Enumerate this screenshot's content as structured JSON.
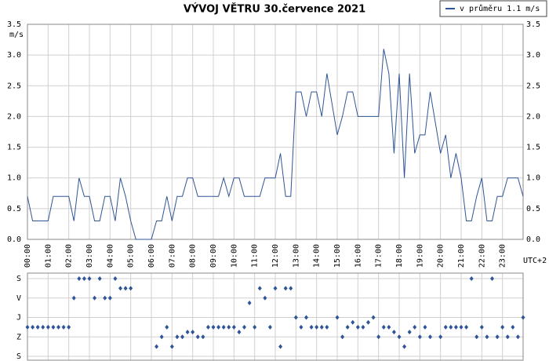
{
  "chart_data": [
    {
      "type": "line",
      "title": "VÝVOJ VĚTRU  30.července 2021",
      "y_label": "m/s",
      "x_label": "UTC+2",
      "xlim": [
        0,
        24
      ],
      "ylim": [
        0,
        3.5
      ],
      "yticks": [
        {
          "value": 0,
          "label": "0.0"
        },
        {
          "value": 0.5,
          "label": "0.5"
        },
        {
          "value": 1,
          "label": "1.0"
        },
        {
          "value": 1.5,
          "label": "1.5"
        },
        {
          "value": 2,
          "label": "2.0"
        },
        {
          "value": 2.5,
          "label": "2.5"
        },
        {
          "value": 3,
          "label": "3.0"
        },
        {
          "value": 3.5,
          "label": "3.5"
        }
      ],
      "xticks": [
        {
          "value": 0,
          "label": "00:00"
        },
        {
          "value": 1,
          "label": "01:00"
        },
        {
          "value": 2,
          "label": "02:00"
        },
        {
          "value": 3,
          "label": "03:00"
        },
        {
          "value": 4,
          "label": "04:00"
        },
        {
          "value": 5,
          "label": "05:00"
        },
        {
          "value": 6,
          "label": "06:00"
        },
        {
          "value": 7,
          "label": "07:00"
        },
        {
          "value": 8,
          "label": "08:00"
        },
        {
          "value": 9,
          "label": "09:00"
        },
        {
          "value": 10,
          "label": "10:00"
        },
        {
          "value": 11,
          "label": "11:00"
        },
        {
          "value": 12,
          "label": "12:00"
        },
        {
          "value": 13,
          "label": "13:00"
        },
        {
          "value": 14,
          "label": "14:00"
        },
        {
          "value": 15,
          "label": "15:00"
        },
        {
          "value": 16,
          "label": "16:00"
        },
        {
          "value": 17,
          "label": "17:00"
        },
        {
          "value": 18,
          "label": "18:00"
        },
        {
          "value": 19,
          "label": "19:00"
        },
        {
          "value": 20,
          "label": "20:00"
        },
        {
          "value": 21,
          "label": "21:00"
        },
        {
          "value": 22,
          "label": "22:00"
        },
        {
          "value": 23,
          "label": "23:00"
        }
      ],
      "grid": true,
      "legend": "top-right",
      "x": [
        0,
        0.25,
        0.5,
        0.75,
        1,
        1.25,
        1.5,
        1.75,
        2,
        2.25,
        2.5,
        2.75,
        3,
        3.25,
        3.5,
        3.75,
        4,
        4.25,
        4.5,
        4.75,
        5,
        5.25,
        5.5,
        5.75,
        6,
        6.25,
        6.5,
        6.75,
        7,
        7.25,
        7.5,
        7.75,
        8,
        8.25,
        8.5,
        8.75,
        9,
        9.25,
        9.5,
        9.75,
        10,
        10.25,
        10.5,
        10.75,
        11,
        11.25,
        11.5,
        11.75,
        12,
        12.25,
        12.5,
        12.75,
        13,
        13.25,
        13.5,
        13.75,
        14,
        14.25,
        14.5,
        14.75,
        15,
        15.25,
        15.5,
        15.75,
        16,
        16.25,
        16.5,
        16.75,
        17,
        17.25,
        17.5,
        17.75,
        18,
        18.25,
        18.5,
        18.75,
        19,
        19.25,
        19.5,
        19.75,
        20,
        20.25,
        20.5,
        20.75,
        21,
        21.25,
        21.5,
        21.75,
        22,
        22.25,
        22.5,
        22.75,
        23,
        23.25,
        23.5,
        23.75,
        24
      ],
      "series": [
        {
          "name": "v průměru 1.1 m/s",
          "color": "#2f5597",
          "values": [
            0.7,
            0.3,
            0.3,
            0.3,
            0.3,
            0.7,
            0.7,
            0.7,
            0.7,
            0.3,
            1.0,
            0.7,
            0.7,
            0.3,
            0.3,
            0.7,
            0.7,
            0.3,
            1.0,
            0.7,
            0.3,
            0,
            0,
            0,
            0,
            0.3,
            0.3,
            0.7,
            0.3,
            0.7,
            0.7,
            1.0,
            1.0,
            0.7,
            0.7,
            0.7,
            0.7,
            0.7,
            1.0,
            0.7,
            1.0,
            1.0,
            0.7,
            0.7,
            0.7,
            0.7,
            1.0,
            1.0,
            1.0,
            1.4,
            0.7,
            0.7,
            2.4,
            2.4,
            2.0,
            2.4,
            2.4,
            2.0,
            2.7,
            2.2,
            1.7,
            2.0,
            2.4,
            2.4,
            2.0,
            2.0,
            2.0,
            2.0,
            2.0,
            3.1,
            2.7,
            1.4,
            2.7,
            1.0,
            2.7,
            1.4,
            1.7,
            1.7,
            2.4,
            1.9,
            1.4,
            1.7,
            1.0,
            1.4,
            1.0,
            0.3,
            0.3,
            0.7,
            1.0,
            0.3,
            0.3,
            0.7,
            0.7,
            1.0,
            1.0,
            1.0,
            0.7
          ]
        }
      ]
    },
    {
      "type": "scatter",
      "xlim": [
        0,
        24
      ],
      "ylim": [
        360,
        0
      ],
      "yticks": [
        {
          "value": 0,
          "label": "S"
        },
        {
          "value": 90,
          "label": "V"
        },
        {
          "value": 180,
          "label": "J"
        },
        {
          "value": 270,
          "label": "Z"
        },
        {
          "value": 360,
          "label": "S"
        }
      ],
      "xticks": [
        0,
        1,
        2,
        3,
        4,
        5,
        6,
        7,
        8,
        9,
        10,
        11,
        12,
        13,
        14,
        15,
        16,
        17,
        18,
        19,
        20,
        21,
        22,
        23
      ],
      "grid": true,
      "x": [
        0,
        0.25,
        0.5,
        0.75,
        1,
        1.25,
        1.5,
        1.75,
        2,
        2.25,
        2.5,
        2.75,
        3,
        3.25,
        3.5,
        3.75,
        4,
        4.25,
        4.5,
        4.75,
        5,
        5.25,
        5.5,
        5.75,
        6,
        6.25,
        6.5,
        6.75,
        7,
        7.25,
        7.5,
        7.75,
        8,
        8.25,
        8.5,
        8.75,
        9,
        9.25,
        9.5,
        9.75,
        10,
        10.25,
        10.5,
        10.75,
        11,
        11.25,
        11.5,
        11.75,
        12,
        12.25,
        12.5,
        12.75,
        13,
        13.25,
        13.5,
        13.75,
        14,
        14.25,
        14.5,
        14.75,
        15,
        15.25,
        15.5,
        15.75,
        16,
        16.25,
        16.5,
        16.75,
        17,
        17.25,
        17.5,
        17.75,
        18,
        18.25,
        18.5,
        18.75,
        19,
        19.25,
        19.5,
        19.75,
        20,
        20.25,
        20.5,
        20.75,
        21,
        21.25,
        21.5,
        21.75,
        22,
        22.25,
        22.5,
        22.75,
        23,
        23.25,
        23.5,
        23.75,
        24
      ],
      "series": [
        {
          "color": "#2f5597",
          "values": [
            225,
            225,
            225,
            225,
            225,
            225,
            225,
            225,
            225,
            90,
            0,
            0,
            0,
            90,
            0,
            90,
            90,
            0,
            45,
            45,
            45,
            null,
            null,
            null,
            null,
            315,
            270,
            225,
            315,
            270,
            270,
            247.5,
            247.5,
            270,
            270,
            225,
            225,
            225,
            225,
            225,
            225,
            247.5,
            225,
            112.5,
            225,
            45,
            90,
            225,
            45,
            315,
            45,
            45,
            180,
            225,
            180,
            225,
            225,
            225,
            225,
            null,
            180,
            270,
            225,
            202.5,
            225,
            225,
            202.5,
            180,
            270,
            225,
            225,
            247.5,
            270,
            315,
            247.5,
            225,
            270,
            225,
            270,
            null,
            270,
            225,
            225,
            225,
            225,
            225,
            0,
            270,
            225,
            270,
            0,
            270,
            225,
            270,
            225,
            270,
            180
          ]
        }
      ]
    }
  ]
}
